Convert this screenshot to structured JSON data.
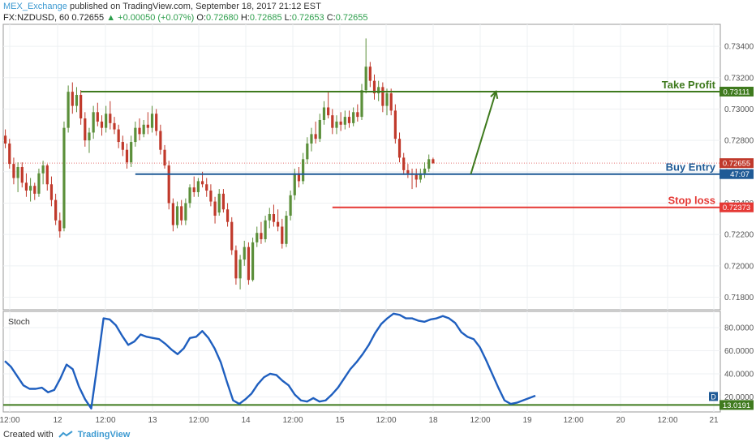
{
  "header": {
    "author": "MEX_Exchange",
    "published": "published on TradingView.com, September 18, 2017 21:12 EST",
    "symbol": "FX:NZDUSD, 60",
    "last": "0.72655",
    "change": "+0.00050 (+0.07%)",
    "o_label": "O:",
    "o": "0.72680",
    "h_label": "H:",
    "h": "0.72685",
    "l_label": "L:",
    "l": "0.72653",
    "c_label": "C:",
    "c": "0.72655"
  },
  "footer": {
    "created_with": "Created with",
    "brand": "TradingView"
  },
  "colors": {
    "up": "#26a69a",
    "down": "#ef5350",
    "candle_up": "#5b8f3a",
    "candle_down": "#c0392b",
    "take_profit": "#3f7a1e",
    "buy_entry": "#1f5a96",
    "stop_loss": "#e53935",
    "stoch": "#1f5fbf",
    "stoch_level": "#3f7a1e"
  },
  "chart_data": [
    {
      "type": "candlestick",
      "title": "",
      "x_tick_labels": [
        "12:00",
        "12",
        "12:00",
        "13",
        "12:00",
        "14",
        "12:00",
        "15",
        "12:00",
        "18",
        "12:00",
        "19",
        "12:00",
        "20",
        "12:00",
        "21"
      ],
      "y_ticks": [
        0.718,
        0.72,
        0.722,
        0.724,
        0.726,
        0.728,
        0.73,
        0.732,
        0.734
      ],
      "ylim": [
        0.7172,
        0.7354
      ],
      "grid": true,
      "price_labels": {
        "take_profit": "0.73111",
        "last": "0.72655",
        "buy_entry_countdown": "47:07",
        "stop_loss": "0.72373"
      },
      "levels": [
        {
          "name": "Take Profit",
          "value": 0.73111,
          "start_x": 18
        },
        {
          "name": "Buy Entry",
          "value": 0.72585,
          "start_x": 31
        },
        {
          "name": "Stop loss",
          "value": 0.72373,
          "start_x": 78
        }
      ],
      "last_price": 0.72655,
      "projection": {
        "from": [
          111,
          0.72585
        ],
        "to": [
          117,
          0.73111
        ]
      },
      "candles": [
        [
          0.7283,
          0.7287,
          0.7275,
          0.7278
        ],
        [
          0.7278,
          0.7281,
          0.7262,
          0.7265
        ],
        [
          0.7265,
          0.7269,
          0.7252,
          0.7256
        ],
        [
          0.7256,
          0.7266,
          0.7247,
          0.7263
        ],
        [
          0.7263,
          0.7266,
          0.725,
          0.7253
        ],
        [
          0.7253,
          0.7259,
          0.7244,
          0.7248
        ],
        [
          0.7248,
          0.7256,
          0.7241,
          0.7251
        ],
        [
          0.7251,
          0.7253,
          0.7242,
          0.7246
        ],
        [
          0.7246,
          0.7262,
          0.7244,
          0.7259
        ],
        [
          0.7259,
          0.7267,
          0.7252,
          0.7264
        ],
        [
          0.7264,
          0.7265,
          0.7248,
          0.7252
        ],
        [
          0.7252,
          0.7257,
          0.7238,
          0.7242
        ],
        [
          0.7242,
          0.7246,
          0.7226,
          0.7229
        ],
        [
          0.7229,
          0.7234,
          0.7218,
          0.7222
        ],
        [
          0.7224,
          0.7292,
          0.7222,
          0.7288
        ],
        [
          0.7288,
          0.7315,
          0.7285,
          0.7311
        ],
        [
          0.7311,
          0.7317,
          0.7297,
          0.7302
        ],
        [
          0.7302,
          0.7314,
          0.7298,
          0.7309
        ],
        [
          0.7309,
          0.7312,
          0.729,
          0.7294
        ],
        [
          0.7294,
          0.7298,
          0.7276,
          0.728
        ],
        [
          0.728,
          0.7288,
          0.7272,
          0.7285
        ],
        [
          0.7285,
          0.7302,
          0.7281,
          0.7298
        ],
        [
          0.7298,
          0.7304,
          0.7289,
          0.7292
        ],
        [
          0.7292,
          0.7296,
          0.7283,
          0.7288
        ],
        [
          0.7288,
          0.7302,
          0.7285,
          0.7297
        ],
        [
          0.7297,
          0.7305,
          0.7287,
          0.7291
        ],
        [
          0.7291,
          0.7295,
          0.7284,
          0.7287
        ],
        [
          0.7287,
          0.729,
          0.7275,
          0.7279
        ],
        [
          0.7279,
          0.7283,
          0.727,
          0.7274
        ],
        [
          0.7274,
          0.7278,
          0.7262,
          0.7266
        ],
        [
          0.7266,
          0.7283,
          0.7263,
          0.7279
        ],
        [
          0.7279,
          0.7292,
          0.7276,
          0.7288
        ],
        [
          0.7288,
          0.7294,
          0.728,
          0.7284
        ],
        [
          0.7284,
          0.7293,
          0.7282,
          0.729
        ],
        [
          0.729,
          0.7298,
          0.7284,
          0.7288
        ],
        [
          0.7288,
          0.7302,
          0.7285,
          0.7297
        ],
        [
          0.7297,
          0.73,
          0.7283,
          0.7286
        ],
        [
          0.7286,
          0.729,
          0.7271,
          0.7274
        ],
        [
          0.7274,
          0.7277,
          0.7262,
          0.7264
        ],
        [
          0.7264,
          0.7267,
          0.7236,
          0.724
        ],
        [
          0.724,
          0.7243,
          0.7222,
          0.7226
        ],
        [
          0.7226,
          0.7241,
          0.7224,
          0.7238
        ],
        [
          0.7238,
          0.7242,
          0.7226,
          0.7229
        ],
        [
          0.7229,
          0.7243,
          0.7226,
          0.724
        ],
        [
          0.724,
          0.7252,
          0.7237,
          0.725
        ],
        [
          0.725,
          0.7257,
          0.7244,
          0.7247
        ],
        [
          0.7247,
          0.7256,
          0.7244,
          0.7254
        ],
        [
          0.7254,
          0.726,
          0.725,
          0.7252
        ],
        [
          0.7252,
          0.7256,
          0.7244,
          0.7248
        ],
        [
          0.7248,
          0.7252,
          0.7238,
          0.7241
        ],
        [
          0.7241,
          0.7244,
          0.7227,
          0.7232
        ],
        [
          0.7234,
          0.7249,
          0.7232,
          0.7246
        ],
        [
          0.7246,
          0.7249,
          0.7234,
          0.7236
        ],
        [
          0.7236,
          0.724,
          0.7225,
          0.7228
        ],
        [
          0.7228,
          0.7231,
          0.7207,
          0.721
        ],
        [
          0.721,
          0.7213,
          0.7188,
          0.7192
        ],
        [
          0.7192,
          0.7207,
          0.7185,
          0.7204
        ],
        [
          0.7204,
          0.7216,
          0.72,
          0.7212
        ],
        [
          0.7212,
          0.7215,
          0.7188,
          0.7191
        ],
        [
          0.7191,
          0.7218,
          0.719,
          0.7215
        ],
        [
          0.7215,
          0.7225,
          0.7212,
          0.7221
        ],
        [
          0.7221,
          0.7228,
          0.7214,
          0.7217
        ],
        [
          0.7217,
          0.7232,
          0.7215,
          0.7229
        ],
        [
          0.7229,
          0.7237,
          0.7224,
          0.7233
        ],
        [
          0.7233,
          0.7239,
          0.7225,
          0.7228
        ],
        [
          0.7228,
          0.7236,
          0.7222,
          0.7225
        ],
        [
          0.7225,
          0.723,
          0.7211,
          0.7214
        ],
        [
          0.7214,
          0.7235,
          0.7212,
          0.7232
        ],
        [
          0.7232,
          0.7248,
          0.7229,
          0.7245
        ],
        [
          0.7245,
          0.7262,
          0.7242,
          0.7259
        ],
        [
          0.7259,
          0.7263,
          0.725,
          0.7254
        ],
        [
          0.7254,
          0.7272,
          0.7252,
          0.7268
        ],
        [
          0.7268,
          0.7282,
          0.7265,
          0.7278
        ],
        [
          0.7278,
          0.7288,
          0.7273,
          0.7284
        ],
        [
          0.7284,
          0.7292,
          0.7278,
          0.7281
        ],
        [
          0.7281,
          0.7297,
          0.7279,
          0.7293
        ],
        [
          0.7293,
          0.7305,
          0.729,
          0.7301
        ],
        [
          0.7301,
          0.7311,
          0.7294,
          0.7296
        ],
        [
          0.7296,
          0.73,
          0.7284,
          0.7288
        ],
        [
          0.7288,
          0.7296,
          0.7284,
          0.7292
        ],
        [
          0.7292,
          0.7298,
          0.7286,
          0.729
        ],
        [
          0.729,
          0.7299,
          0.7287,
          0.7295
        ],
        [
          0.7295,
          0.7299,
          0.7288,
          0.7291
        ],
        [
          0.7291,
          0.7301,
          0.7289,
          0.7298
        ],
        [
          0.7298,
          0.7303,
          0.7292,
          0.7295
        ],
        [
          0.7295,
          0.7316,
          0.7293,
          0.7312
        ],
        [
          0.7312,
          0.7345,
          0.731,
          0.7327
        ],
        [
          0.7327,
          0.733,
          0.7314,
          0.7318
        ],
        [
          0.7318,
          0.7322,
          0.7306,
          0.731
        ],
        [
          0.731,
          0.7318,
          0.7305,
          0.7314
        ],
        [
          0.7314,
          0.7317,
          0.7298,
          0.7302
        ],
        [
          0.7302,
          0.7313,
          0.7296,
          0.731
        ],
        [
          0.731,
          0.7313,
          0.7296,
          0.7299
        ],
        [
          0.7299,
          0.7303,
          0.7278,
          0.7281
        ],
        [
          0.7281,
          0.7285,
          0.7266,
          0.7269
        ],
        [
          0.7269,
          0.7272,
          0.7258,
          0.7261
        ],
        [
          0.7261,
          0.7265,
          0.7256,
          0.7259
        ],
        [
          0.7259,
          0.7262,
          0.7249,
          0.7258
        ],
        [
          0.7258,
          0.7262,
          0.725,
          0.7255
        ],
        [
          0.7255,
          0.7262,
          0.7253,
          0.7259
        ],
        [
          0.7259,
          0.7266,
          0.7256,
          0.7262
        ],
        [
          0.7262,
          0.7271,
          0.726,
          0.7268
        ],
        [
          0.7268,
          0.7269,
          0.7265,
          0.72655
        ]
      ]
    },
    {
      "type": "line",
      "title": "Stoch",
      "y_ticks": [
        20,
        40,
        60,
        80
      ],
      "ylim": [
        7,
        94
      ],
      "level": {
        "value": 13.0191,
        "label": "13.0191"
      },
      "legend_marker": "D",
      "series": [
        {
          "values": [
            51,
            46,
            38,
            30,
            27,
            27,
            28,
            24,
            26,
            36,
            48,
            44,
            29,
            18,
            10,
            48,
            88,
            87,
            82,
            73,
            65,
            68,
            74,
            72,
            71,
            70,
            66,
            61,
            57,
            62,
            71,
            72,
            77,
            71,
            62,
            50,
            33,
            17,
            14,
            18,
            23,
            31,
            37,
            40,
            39,
            34,
            30,
            22,
            17,
            16,
            19,
            16,
            17,
            22,
            28,
            36,
            44,
            50,
            57,
            65,
            75,
            83,
            88,
            92,
            91,
            88,
            88,
            86,
            85,
            87,
            88,
            90,
            88,
            84,
            76,
            72,
            70,
            63,
            52,
            40,
            28,
            17,
            14,
            15,
            17,
            19,
            21
          ]
        }
      ]
    }
  ]
}
